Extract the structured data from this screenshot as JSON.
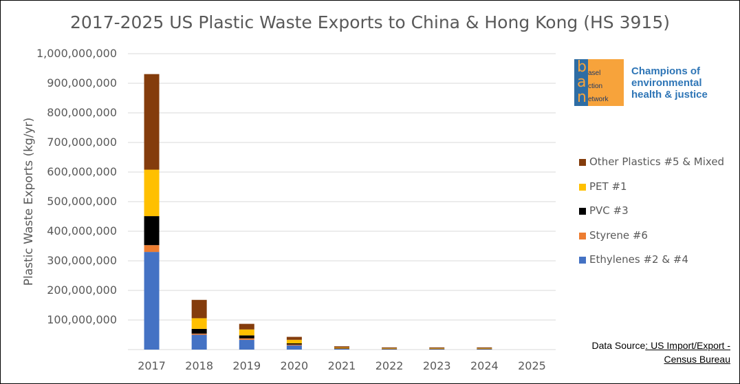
{
  "title": "2017-2025 US Plastic Waste Exports to China & Hong Kong (HS 3915)",
  "logo": {
    "letters": [
      "b",
      "a",
      "n"
    ],
    "words": [
      "asel",
      "ction",
      "etwork"
    ],
    "tagline": "Champions of environmental health & justice",
    "colors": {
      "orange": "#f7a33b",
      "blue": "#2e6da4",
      "text": "#2e75b6"
    }
  },
  "source": {
    "prefix": "Data Source",
    "link": ": US Import/Export - Census Bureau"
  },
  "chart_data": {
    "type": "bar",
    "stacked": true,
    "categories": [
      "2017",
      "2018",
      "2019",
      "2020",
      "2021",
      "2022",
      "2023",
      "2024",
      "2025"
    ],
    "ylabel": "Plastic Waste Exports (kg/yr)",
    "ylim": [
      0,
      1000000000
    ],
    "yticks": [
      "1,000,000,000",
      "900,000,000",
      "800,000,000",
      "700,000,000",
      "600,000,000",
      "500,000,000",
      "400,000,000",
      "300,000,000",
      "200,000,000",
      "100,000,000"
    ],
    "grid": true,
    "legend_position": "right",
    "series": [
      {
        "name": "Ethylenes #2 & #4",
        "color": "#4472c4",
        "values": [
          330000000,
          50000000,
          33000000,
          14000000,
          3000000,
          2000000,
          2000000,
          2000000,
          0
        ]
      },
      {
        "name": "Styrene #6",
        "color": "#ed7d31",
        "values": [
          23000000,
          4000000,
          5000000,
          3000000,
          500000,
          300000,
          300000,
          300000,
          0
        ]
      },
      {
        "name": "PVC #3",
        "color": "#000000",
        "values": [
          98000000,
          16000000,
          10000000,
          4000000,
          1000000,
          500000,
          500000,
          500000,
          0
        ]
      },
      {
        "name": "PET #1",
        "color": "#ffc000",
        "values": [
          157000000,
          36000000,
          20000000,
          12000000,
          2000000,
          1500000,
          1500000,
          1500000,
          0
        ]
      },
      {
        "name": "Other Plastics #5 & Mixed",
        "color": "#843c0c",
        "values": [
          323000000,
          62000000,
          19000000,
          10000000,
          4500000,
          3000000,
          3000000,
          3000000,
          0
        ]
      }
    ]
  }
}
